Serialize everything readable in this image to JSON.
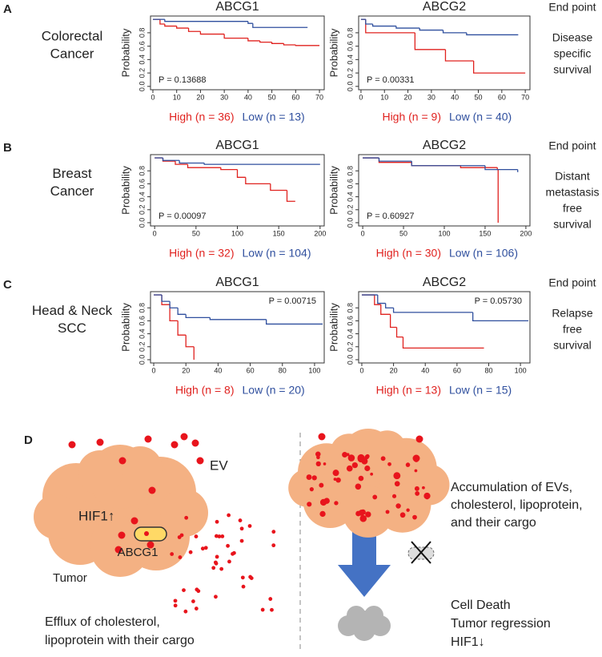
{
  "panels": [
    {
      "letter": "A",
      "row_label": [
        "Colorectal",
        "Cancer"
      ],
      "endpoint_header": "End point",
      "endpoint": [
        "Disease",
        "specific",
        "survival"
      ]
    },
    {
      "letter": "B",
      "row_label": [
        "Breast",
        "Cancer"
      ],
      "endpoint_header": "End point",
      "endpoint": [
        "Distant",
        "metastasis",
        "free",
        "survival"
      ]
    },
    {
      "letter": "C",
      "row_label": [
        "Head & Neck",
        "SCC"
      ],
      "endpoint_header": "End point",
      "endpoint": [
        "Relapse",
        "free",
        "survival"
      ]
    }
  ],
  "chart_data": [
    {
      "type": "line",
      "step": true,
      "title": "ABCG1",
      "ylabel": "Probability",
      "annotation": "P = 0.13688",
      "annotation_corner": "bottom-left",
      "xlim": [
        -1,
        72
      ],
      "xticks": [
        0,
        10,
        20,
        30,
        40,
        50,
        60,
        70
      ],
      "ylim": [
        -0.05,
        1.05
      ],
      "yticks": [
        {
          "value": 0,
          "label": "0.0"
        },
        0.2,
        0.4,
        0.6,
        0.8
      ],
      "series": [
        {
          "name": "High (n = 36)",
          "color": "#e0221f",
          "x": [
            0,
            3,
            5,
            10,
            15,
            20,
            30,
            40,
            45,
            50,
            55,
            60,
            70
          ],
          "values": [
            1,
            0.93,
            0.9,
            0.87,
            0.82,
            0.78,
            0.72,
            0.68,
            0.66,
            0.64,
            0.62,
            0.61,
            0.61
          ]
        },
        {
          "name": "Low (n = 13)",
          "color": "#2f4f9e",
          "x": [
            0,
            5,
            40,
            42,
            65
          ],
          "values": [
            1,
            0.97,
            0.94,
            0.88,
            0.88
          ]
        }
      ]
    },
    {
      "type": "line",
      "step": true,
      "title": "ABCG2",
      "ylabel": "Probability",
      "annotation": "P = 0.00331",
      "annotation_corner": "bottom-left",
      "xlim": [
        -1,
        72
      ],
      "xticks": [
        0,
        10,
        20,
        30,
        40,
        50,
        60,
        70
      ],
      "ylim": [
        -0.05,
        1.05
      ],
      "yticks": [
        {
          "value": 0,
          "label": "0.0"
        },
        0.2,
        0.4,
        0.6,
        0.8
      ],
      "series": [
        {
          "name": "High (n = 9)",
          "color": "#e0221f",
          "x": [
            0,
            2,
            23,
            36,
            48,
            70
          ],
          "values": [
            1,
            0.8,
            0.55,
            0.38,
            0.2,
            0.2
          ]
        },
        {
          "name": "Low (n = 40)",
          "color": "#2f4f9e",
          "x": [
            0,
            2,
            5,
            15,
            25,
            35,
            45,
            67
          ],
          "values": [
            1,
            0.93,
            0.9,
            0.87,
            0.84,
            0.8,
            0.77,
            0.77
          ]
        }
      ]
    },
    {
      "type": "line",
      "step": true,
      "title": "ABCG1",
      "ylabel": "Probability",
      "annotation": "P = 0.00097",
      "annotation_corner": "bottom-left",
      "xlim": [
        -5,
        205
      ],
      "xticks": [
        0,
        50,
        100,
        150,
        200
      ],
      "ylim": [
        -0.05,
        1.05
      ],
      "yticks": [
        {
          "value": 0,
          "label": "0.0"
        },
        0.2,
        0.4,
        0.6,
        0.8
      ],
      "series": [
        {
          "name": "High (n = 32)",
          "color": "#e0221f",
          "x": [
            0,
            10,
            25,
            40,
            80,
            100,
            110,
            140,
            160,
            170
          ],
          "values": [
            1,
            0.95,
            0.9,
            0.85,
            0.82,
            0.7,
            0.6,
            0.5,
            0.33,
            0.33
          ]
        },
        {
          "name": "Low (n = 104)",
          "color": "#2f4f9e",
          "x": [
            0,
            10,
            30,
            60,
            200
          ],
          "values": [
            1,
            0.96,
            0.92,
            0.9,
            0.9
          ]
        }
      ]
    },
    {
      "type": "line",
      "step": true,
      "title": "ABCG2",
      "ylabel": "Probability",
      "annotation": "P = 0.60927",
      "annotation_corner": "bottom-left",
      "xlim": [
        -5,
        205
      ],
      "xticks": [
        0,
        50,
        100,
        150,
        200
      ],
      "ylim": [
        -0.05,
        1.05
      ],
      "yticks": [
        {
          "value": 0,
          "label": "0.0"
        },
        0.2,
        0.4,
        0.6,
        0.8
      ],
      "series": [
        {
          "name": "High (n = 30)",
          "color": "#e0221f",
          "x": [
            0,
            20,
            60,
            120,
            165,
            166
          ],
          "values": [
            1,
            0.93,
            0.88,
            0.85,
            0.82,
            0
          ]
        },
        {
          "name": "Low (n = 106)",
          "color": "#2f4f9e",
          "x": [
            0,
            20,
            60,
            150,
            190
          ],
          "values": [
            1,
            0.95,
            0.88,
            0.82,
            0.78
          ]
        }
      ]
    },
    {
      "type": "line",
      "step": true,
      "title": "ABCG1",
      "ylabel": "Probability",
      "annotation": "P = 0.00715",
      "annotation_corner": "top-right",
      "xlim": [
        -2,
        106
      ],
      "xticks": [
        0,
        20,
        40,
        60,
        80,
        100
      ],
      "ylim": [
        -0.05,
        1.05
      ],
      "yticks": [
        {
          "value": 0,
          "label": "0.0"
        },
        0.2,
        0.4,
        0.6,
        0.8
      ],
      "series": [
        {
          "name": "High (n = 8)",
          "color": "#e0221f",
          "x": [
            0,
            5,
            10,
            15,
            20,
            25
          ],
          "values": [
            1,
            0.85,
            0.6,
            0.38,
            0.2,
            0
          ]
        },
        {
          "name": "Low (n = 20)",
          "color": "#2f4f9e",
          "x": [
            0,
            5,
            10,
            15,
            20,
            35,
            70,
            105
          ],
          "values": [
            1,
            0.9,
            0.8,
            0.7,
            0.65,
            0.62,
            0.55,
            0.55
          ]
        }
      ]
    },
    {
      "type": "line",
      "step": true,
      "title": "ABCG2",
      "ylabel": "Probability",
      "annotation": "P = 0.05730",
      "annotation_corner": "top-right",
      "xlim": [
        -2,
        106
      ],
      "xticks": [
        0,
        20,
        40,
        60,
        80,
        100
      ],
      "ylim": [
        -0.05,
        1.05
      ],
      "yticks": [
        {
          "value": 0,
          "label": "0.0"
        },
        0.2,
        0.4,
        0.6,
        0.8
      ],
      "series": [
        {
          "name": "High (n = 13)",
          "color": "#e0221f",
          "x": [
            0,
            8,
            12,
            18,
            22,
            26,
            77
          ],
          "values": [
            1,
            0.85,
            0.7,
            0.5,
            0.35,
            0.18,
            0.18
          ]
        },
        {
          "name": "Low (n = 15)",
          "color": "#2f4f9e",
          "x": [
            0,
            10,
            15,
            20,
            70,
            105
          ],
          "values": [
            1,
            0.87,
            0.8,
            0.73,
            0.6,
            0.6
          ]
        }
      ]
    }
  ],
  "diagram": {
    "letter": "D",
    "ev": "EV",
    "hif_up": "HIF1↑",
    "transporter": "ABCG1",
    "tumor": "Tumor",
    "efflux": [
      "Efflux of cholesterol,",
      "lipoprotein with their cargo"
    ],
    "accumulation": [
      "Accumulation of EVs,",
      "cholesterol, lipoprotein,",
      "and their cargo"
    ],
    "outcome": [
      "Cell Death",
      "Tumor regression",
      "HIF1↓"
    ]
  }
}
